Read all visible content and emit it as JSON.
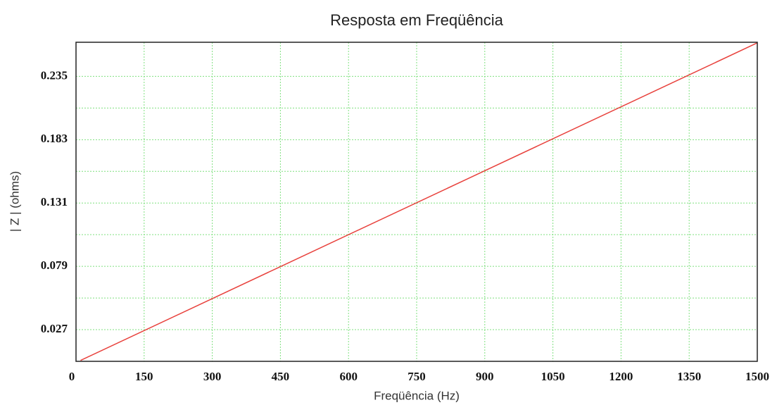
{
  "chart_data": {
    "type": "line",
    "title": "Resposta em Freqüência",
    "x_label": "Freqüência (Hz)",
    "y_label": "| Z | (ohms)",
    "x": [
      10,
      1500
    ],
    "series": [
      {
        "name": "|Z|",
        "color": "#e8413c",
        "values": [
          0.00175,
          0.2625
        ]
      }
    ],
    "xlim": [
      0,
      1500
    ],
    "xticks": [
      0,
      150,
      300,
      450,
      600,
      750,
      900,
      1050,
      1200,
      1350,
      1500
    ],
    "ylim": [
      0.001,
      0.263
    ],
    "yticks": [
      0.027,
      0.079,
      0.131,
      0.183,
      0.235
    ],
    "grid": true,
    "legend": false
  }
}
